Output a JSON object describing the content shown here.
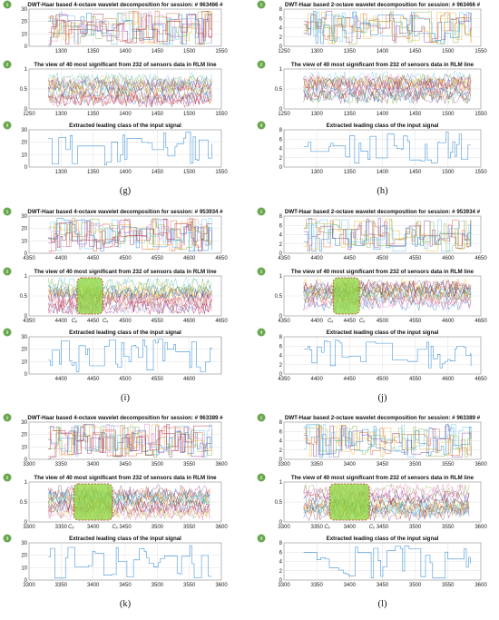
{
  "chart_data": [
    {
      "caption": "(g)",
      "badges": [
        "1",
        "2",
        "3"
      ],
      "panels": [
        {
          "type": "line",
          "title": "DWT-Haar based 4-octave wavelet decomposition for session: # 963466 #",
          "xlim": [
            1250,
            1550
          ],
          "xticks": [
            1300,
            1350,
            1400,
            1450,
            1500,
            1550
          ],
          "ylim": [
            0,
            30
          ],
          "yticks": [
            0,
            10,
            20,
            30
          ],
          "series_count": 8,
          "style": "multi-step"
        },
        {
          "type": "line",
          "title": "The view of 40 most significant from 232 of sensors data in RLM line",
          "xlim": [
            1250,
            1550
          ],
          "xticks": [
            1250,
            1300,
            1350,
            1400,
            1450,
            1500,
            1550
          ],
          "ylim": [
            0,
            1
          ],
          "yticks": [
            0,
            0.5,
            1
          ],
          "series_count": 16,
          "style": "multi-noise"
        },
        {
          "type": "line",
          "title": "Extracted leading class of the input signal",
          "xlim": [
            1250,
            1550
          ],
          "xticks": [
            1300,
            1350,
            1400,
            1450,
            1500,
            1550
          ],
          "ylim": [
            0,
            30
          ],
          "yticks": [
            0,
            10,
            20,
            30
          ],
          "series_count": 1,
          "style": "single-step"
        }
      ]
    },
    {
      "caption": "(h)",
      "badges": [
        "1",
        "2",
        "3"
      ],
      "panels": [
        {
          "type": "line",
          "title": "DWT-Haar based 2-octave wavelet decomposition for session: # 963466 #",
          "xlim": [
            1250,
            1550
          ],
          "xticks": [
            1250,
            1300,
            1350,
            1400,
            1450,
            1500,
            1550
          ],
          "ylim": [
            0,
            8
          ],
          "yticks": [
            0,
            2,
            4,
            6,
            8
          ],
          "series_count": 6,
          "style": "multi-step"
        },
        {
          "type": "line",
          "title": "The view of 40 most significant from 232 of sensors data in RLM line",
          "xlim": [
            1250,
            1550
          ],
          "xticks": [
            1250,
            1300,
            1350,
            1400,
            1450,
            1500,
            1550
          ],
          "ylim": [
            0,
            1
          ],
          "yticks": [
            0,
            0.5,
            1
          ],
          "series_count": 16,
          "style": "multi-noise"
        },
        {
          "type": "line",
          "title": "Extracted leading class of the input signal",
          "xlim": [
            1250,
            1550
          ],
          "xticks": [
            1300,
            1350,
            1400,
            1450,
            1500,
            1550
          ],
          "ylim": [
            0,
            8
          ],
          "yticks": [
            0,
            2,
            4,
            6,
            8
          ],
          "series_count": 1,
          "style": "single-step"
        }
      ]
    },
    {
      "caption": "(i)",
      "badges": [
        "1",
        "2",
        "3"
      ],
      "panels": [
        {
          "type": "line",
          "title": "DWT-Haar based 4-octave wavelet decomposition for session: # 953934 #",
          "xlim": [
            4350,
            4650
          ],
          "xticks": [
            4350,
            4400,
            4450,
            4500,
            4550,
            4600,
            4650
          ],
          "ylim": [
            0,
            30
          ],
          "yticks": [
            0,
            10,
            20,
            30
          ],
          "series_count": 8,
          "style": "multi-step"
        },
        {
          "type": "line",
          "title": "The view of 40 most significant from 232 of sensors data in RLM line",
          "xlim": [
            4350,
            4650
          ],
          "xticks": [
            4350,
            4400,
            4450,
            4500,
            4550,
            4600,
            4650
          ],
          "ylim": [
            0,
            1
          ],
          "yticks": [
            0,
            0.5,
            1
          ],
          "series_count": 16,
          "style": "multi-noise",
          "highlight": [
            4425,
            4465
          ],
          "highlight_labels": [
            "Cₓ",
            "Cₓ"
          ]
        },
        {
          "type": "line",
          "title": "Extracted leading class of the input signal",
          "xlim": [
            4350,
            4650
          ],
          "xticks": [
            4400,
            4450,
            4500,
            4550,
            4600
          ],
          "ylim": [
            0,
            30
          ],
          "yticks": [
            0,
            10,
            20,
            30
          ],
          "series_count": 1,
          "style": "single-step"
        }
      ]
    },
    {
      "caption": "(j)",
      "badges": [
        "1",
        "2",
        "3"
      ],
      "panels": [
        {
          "type": "line",
          "title": "DWT-Haar based 2-octave wavelet decomposition for session: # 953934 #",
          "xlim": [
            4350,
            4650
          ],
          "xticks": [
            4350,
            4400,
            4450,
            4500,
            4550,
            4600,
            4650
          ],
          "ylim": [
            0,
            8
          ],
          "yticks": [
            0,
            2,
            4,
            6,
            8
          ],
          "series_count": 6,
          "style": "multi-step"
        },
        {
          "type": "line",
          "title": "The view of 40 most significant from 232 of sensors data in RLM line",
          "xlim": [
            4350,
            4650
          ],
          "xticks": [
            4350,
            4400,
            4450,
            4500,
            4550,
            4600,
            4650
          ],
          "ylim": [
            0,
            1
          ],
          "yticks": [
            0,
            0.5,
            1
          ],
          "series_count": 16,
          "style": "multi-noise",
          "highlight": [
            4425,
            4465
          ],
          "highlight_labels": [
            "Cₓ",
            "Cₓ"
          ]
        },
        {
          "type": "line",
          "title": "Extracted leading class of the input signal",
          "xlim": [
            4350,
            4650
          ],
          "xticks": [
            4350,
            4400,
            4450,
            4500,
            4550,
            4600,
            4650
          ],
          "ylim": [
            0,
            8
          ],
          "yticks": [
            0,
            2,
            4,
            6,
            8
          ],
          "series_count": 1,
          "style": "single-step"
        }
      ]
    },
    {
      "caption": "(k)",
      "badges": [
        "1",
        "2",
        "3"
      ],
      "panels": [
        {
          "type": "line",
          "title": "DWT-Haar based 4-octave wavelet decomposition for session: # 963389 #",
          "xlim": [
            3300,
            3600
          ],
          "xticks": [
            3300,
            3350,
            3400,
            3450,
            3500,
            3550,
            3600
          ],
          "ylim": [
            0,
            30
          ],
          "yticks": [
            0,
            10,
            20,
            30
          ],
          "series_count": 8,
          "style": "multi-step"
        },
        {
          "type": "line",
          "title": "The view of 40 most significant from 232 of sensors data in RLM line",
          "xlim": [
            3300,
            3600
          ],
          "xticks": [
            3300,
            3350,
            3400,
            3450,
            3500,
            3550,
            3600
          ],
          "ylim": [
            0,
            1
          ],
          "yticks": [
            0,
            0.5,
            1
          ],
          "series_count": 16,
          "style": "multi-noise",
          "highlight": [
            3370,
            3430
          ],
          "highlight_labels": [
            "Cₓ",
            "Cₓ"
          ]
        },
        {
          "type": "line",
          "title": "Extracted leading class of the input signal",
          "xlim": [
            3300,
            3600
          ],
          "xticks": [
            3300,
            3350,
            3400,
            3450,
            3500,
            3550,
            3600
          ],
          "ylim": [
            0,
            30
          ],
          "yticks": [
            0,
            10,
            20,
            30
          ],
          "series_count": 1,
          "style": "single-step"
        }
      ]
    },
    {
      "caption": "(l)",
      "badges": [
        "1",
        "2",
        "3"
      ],
      "panels": [
        {
          "type": "line",
          "title": "DWT-Haar based 2-octave wavelet decomposition for session: # 963389 #",
          "xlim": [
            3300,
            3600
          ],
          "xticks": [
            3300,
            3350,
            3400,
            3450,
            3500,
            3550,
            3600
          ],
          "ylim": [
            0,
            8
          ],
          "yticks": [
            0,
            2,
            4,
            6,
            8
          ],
          "series_count": 6,
          "style": "multi-step"
        },
        {
          "type": "line",
          "title": "The view of 40 most significant from 232 of sensors data in RLM line",
          "xlim": [
            3300,
            3600
          ],
          "xticks": [
            3300,
            3350,
            3400,
            3450,
            3500,
            3550,
            3600
          ],
          "ylim": [
            0,
            1
          ],
          "yticks": [
            0,
            0.5,
            1
          ],
          "series_count": 16,
          "style": "multi-noise",
          "highlight": [
            3370,
            3430
          ],
          "highlight_labels": [
            "Cₓ",
            "Cₓ"
          ]
        },
        {
          "type": "line",
          "title": "Extracted leading class of the input signal",
          "xlim": [
            3300,
            3600
          ],
          "xticks": [
            3300,
            3350,
            3400,
            3450,
            3500,
            3550,
            3600
          ],
          "ylim": [
            0,
            8
          ],
          "yticks": [
            0,
            2,
            4,
            6,
            8
          ],
          "series_count": 1,
          "style": "single-step"
        }
      ]
    }
  ],
  "colors": {
    "palette": [
      "#0072bd",
      "#d95319",
      "#edb120",
      "#7e2f8e",
      "#77ac30",
      "#4dbeee",
      "#a2142f",
      "#e377c2"
    ],
    "leading": "#3a8fd6",
    "highlight_fill": "#8bd63a",
    "highlight_stroke": "#c0392b",
    "badge": "#6aa84f"
  }
}
